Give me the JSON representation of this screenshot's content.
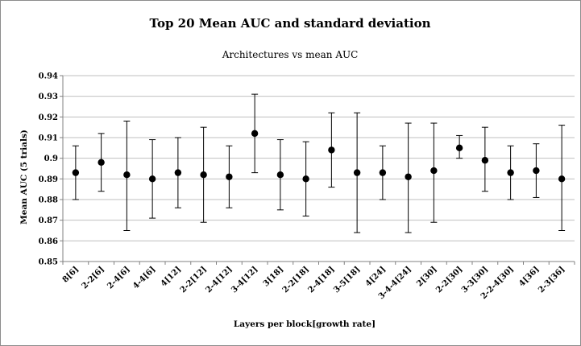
{
  "chart_data": {
    "type": "scatter",
    "title": "Top 20 Mean AUC and standard deviation",
    "subtitle": "Architectures vs mean AUC",
    "xlabel": "Layers per block[growth rate]",
    "ylabel": "Mean AUC (5 trials)",
    "ylim": [
      0.85,
      0.94
    ],
    "yticks": [
      "0.85",
      "0.86",
      "0.87",
      "0.88",
      "0.89",
      "0.9",
      "0.91",
      "0.92",
      "0.93",
      "0.94"
    ],
    "grid": true,
    "categories": [
      "8[6]",
      "2-2[6]",
      "2-4[6]",
      "4-4[6]",
      "4[12]",
      "2-2[12]",
      "2-4[12]",
      "3-4[12]",
      "3[18]",
      "2-2[18]",
      "2-4[18]",
      "3-5[18]",
      "4[24]",
      "3-4-4[24]",
      "2[30]",
      "2-2[30]",
      "3-3[30]",
      "2-2-4[30]",
      "4[36]",
      "2-3[36]"
    ],
    "values": [
      0.893,
      0.898,
      0.892,
      0.89,
      0.893,
      0.892,
      0.891,
      0.912,
      0.892,
      0.89,
      0.904,
      0.893,
      0.893,
      0.891,
      0.894,
      0.905,
      0.899,
      0.893,
      0.894,
      0.89
    ],
    "error_upper": [
      0.906,
      0.912,
      0.918,
      0.909,
      0.91,
      0.915,
      0.906,
      0.931,
      0.909,
      0.908,
      0.922,
      0.922,
      0.906,
      0.917,
      0.917,
      0.911,
      0.915,
      0.906,
      0.907,
      0.916
    ],
    "error_lower": [
      0.88,
      0.884,
      0.865,
      0.871,
      0.876,
      0.869,
      0.876,
      0.893,
      0.875,
      0.872,
      0.886,
      0.864,
      0.88,
      0.864,
      0.869,
      0.9,
      0.884,
      0.88,
      0.881,
      0.865
    ],
    "marker_color": "#000000",
    "grid_color": "#bfbfbf"
  }
}
